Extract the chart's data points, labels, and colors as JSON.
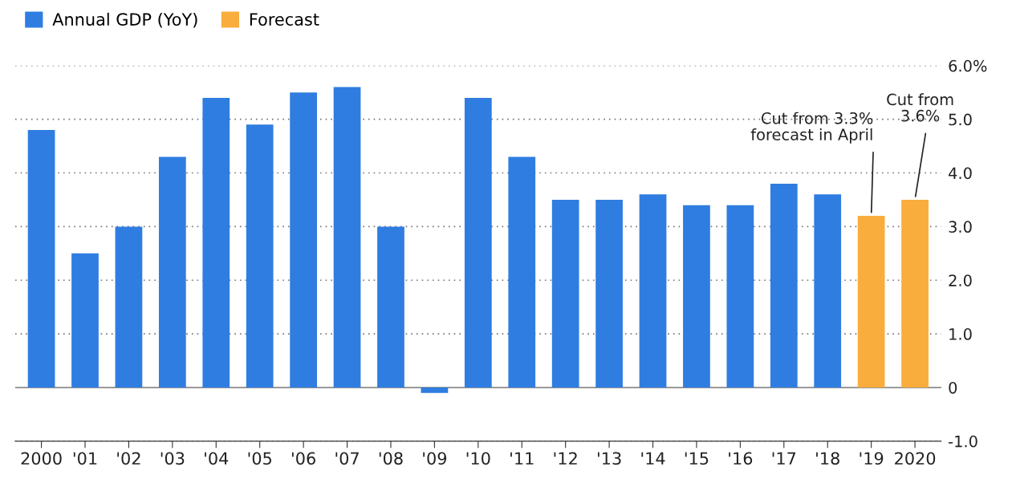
{
  "chart_data": {
    "type": "bar",
    "categories": [
      "2000",
      "'01",
      "'02",
      "'03",
      "'04",
      "'05",
      "'06",
      "'07",
      "'08",
      "'09",
      "'10",
      "'11",
      "'12",
      "'13",
      "'14",
      "'15",
      "'16",
      "'17",
      "'18",
      "'19",
      "2020"
    ],
    "series": [
      {
        "name": "Annual GDP (YoY)",
        "color": "#2f7de1",
        "values": [
          4.8,
          2.5,
          3.0,
          4.3,
          5.4,
          4.9,
          5.5,
          5.6,
          3.0,
          -0.1,
          5.4,
          4.3,
          3.5,
          3.5,
          3.6,
          3.4,
          3.4,
          3.8,
          3.6,
          null,
          null
        ]
      },
      {
        "name": "Forecast",
        "color": "#f9ad3c",
        "values": [
          null,
          null,
          null,
          null,
          null,
          null,
          null,
          null,
          null,
          null,
          null,
          null,
          null,
          null,
          null,
          null,
          null,
          null,
          null,
          3.2,
          3.5
        ]
      }
    ],
    "ylim": [
      -1.0,
      6.0
    ],
    "yticks": [
      {
        "value": 6.0,
        "label": "6.0%"
      },
      {
        "value": 5.0,
        "label": "5.0"
      },
      {
        "value": 4.0,
        "label": "4.0"
      },
      {
        "value": 3.0,
        "label": "3.0"
      },
      {
        "value": 2.0,
        "label": "2.0"
      },
      {
        "value": 1.0,
        "label": "1.0"
      },
      0,
      {
        "value": -1.0,
        "label": "-1.0"
      }
    ],
    "grid": "y",
    "legend": "top left",
    "ref_lines": [
      {
        "axis": "y",
        "value": 0,
        "color": "#999999",
        "line_style": "solid"
      }
    ],
    "annotations": [
      {
        "text": "Cut from 3.3%\nforecast in April",
        "x": "'19",
        "y": 3.2
      },
      {
        "text": "Cut from\n3.6%",
        "x": "2020",
        "y": 3.5
      }
    ]
  }
}
